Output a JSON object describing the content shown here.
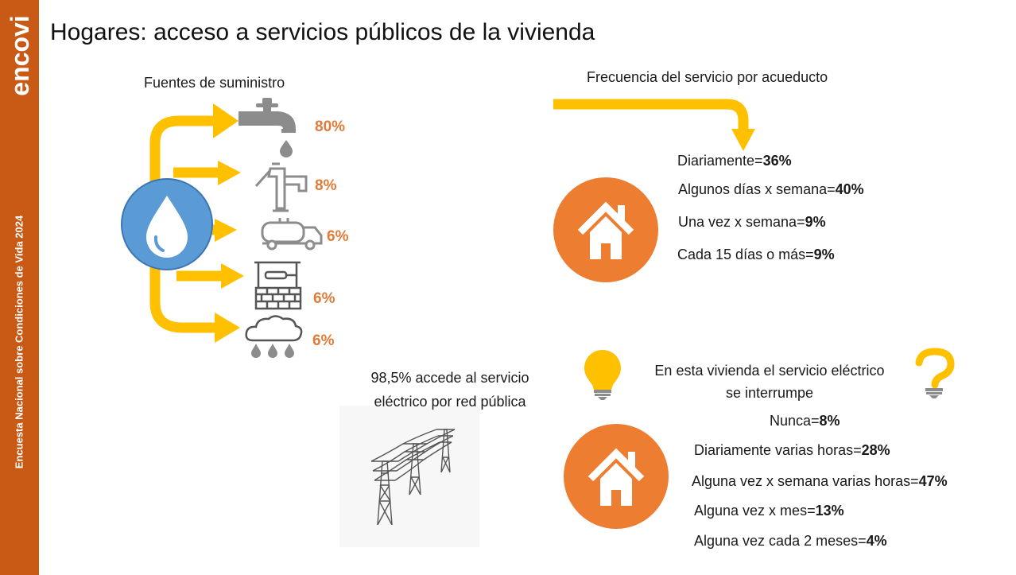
{
  "sidebar": {
    "logo_text": "encovi",
    "vertical_text": "Encuesta Nacional sobre Condiciones de Vida 2024"
  },
  "title": "Hogares: acceso a servicios públicos de la vivienda",
  "supply": {
    "heading": "Fuentes de suministro",
    "sources": [
      {
        "icon": "water-tap-icon",
        "value": "80%"
      },
      {
        "icon": "hand-pump-icon",
        "value": "8%"
      },
      {
        "icon": "water-truck-icon",
        "value": "6%"
      },
      {
        "icon": "water-well-icon",
        "value": "6%"
      },
      {
        "icon": "rain-cloud-icon",
        "value": "6%"
      }
    ]
  },
  "aqueduct": {
    "heading": "Frecuencia del servicio por acueducto",
    "items": [
      {
        "label": "Diariamente=",
        "value": "36%"
      },
      {
        "label": "Algunos días x semana=",
        "value": "40%"
      },
      {
        "label": "Una vez x semana=",
        "value": "9%"
      },
      {
        "label": "Cada 15 días o más=",
        "value": "9%"
      }
    ]
  },
  "electric_access": {
    "line1": "98,5% accede al servicio",
    "line2": "eléctrico por red pública"
  },
  "interruptions": {
    "heading_line1": "En esta vivienda el servicio eléctrico",
    "heading_line2": "se interrumpe",
    "items": [
      {
        "label": "Nunca=",
        "value": "8%"
      },
      {
        "label": "Diariamente varias horas=",
        "value": "28%"
      },
      {
        "label": "Alguna vez x semana varias horas=",
        "value": "47%"
      },
      {
        "label": "Alguna vez x mes=",
        "value": "13%"
      },
      {
        "label": "Alguna vez cada 2 meses=",
        "value": "4%"
      }
    ]
  },
  "colors": {
    "sidebar": "#c85a16",
    "arrow": "#ffc000",
    "orange_circle": "#ed7d31",
    "blue_circle": "#5b9bd5",
    "percent_text": "#e07b39"
  }
}
